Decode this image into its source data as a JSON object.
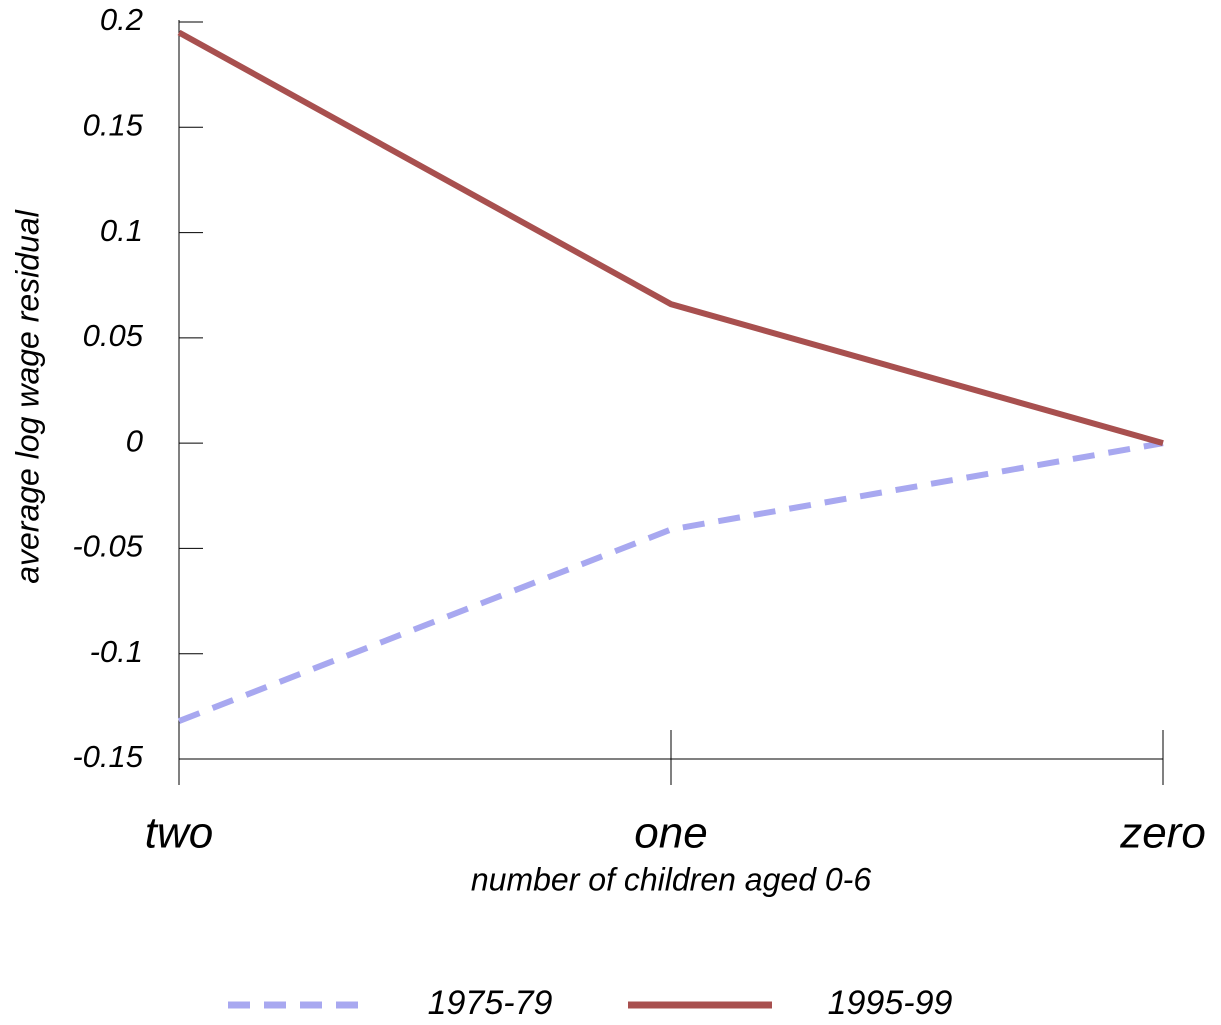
{
  "chart_data": {
    "type": "line",
    "y_label": "average log wage residual",
    "x_label": "number of children aged 0-6",
    "categories": [
      "two",
      "one",
      "zero"
    ],
    "series": [
      {
        "name": "1975-79",
        "color": "#a8a8f0",
        "dashed": true,
        "values": [
          -0.132,
          -0.041,
          0
        ]
      },
      {
        "name": "1995-99",
        "color": "#a8504f",
        "dashed": false,
        "values": [
          0.195,
          0.066,
          0
        ]
      }
    ],
    "ylim": [
      -0.15,
      0.2
    ],
    "yticks": [
      -0.15,
      -0.1,
      -0.05,
      0,
      0.05,
      0.1,
      0.15,
      0.2
    ],
    "legend": "bottom"
  }
}
